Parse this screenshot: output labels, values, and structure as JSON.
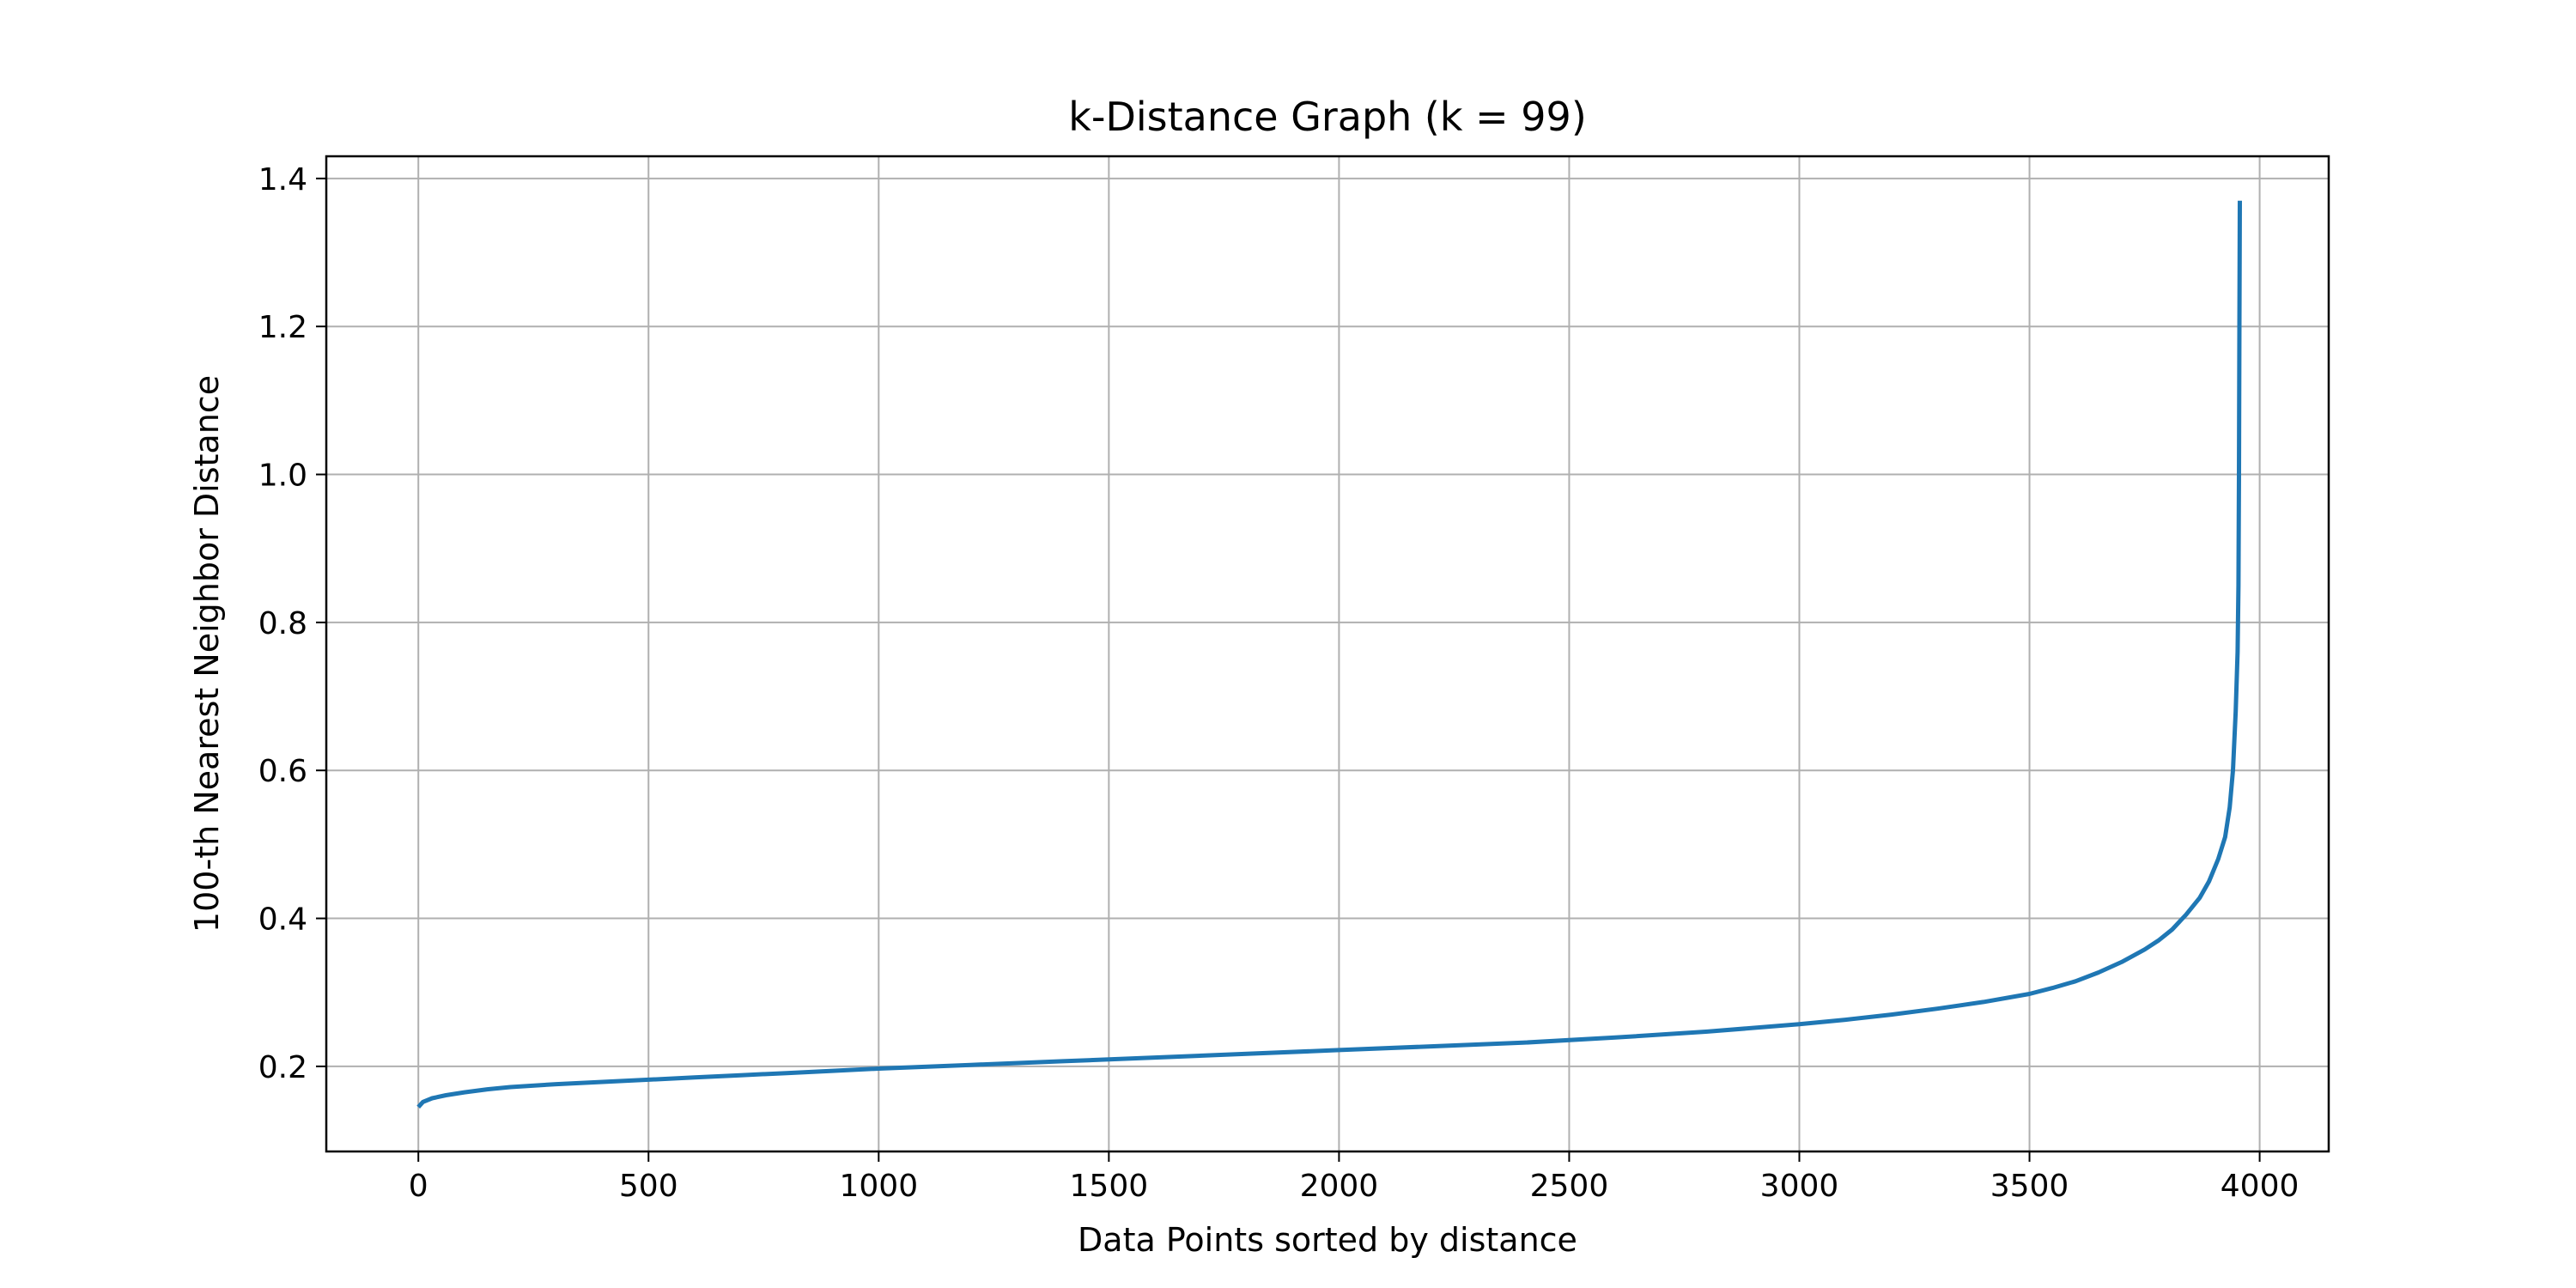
{
  "chart_data": {
    "type": "line",
    "title": "k-Distance Graph (k = 99)",
    "xlabel": "Data Points sorted by distance",
    "ylabel": "100-th Nearest Neighbor Distance",
    "xlim": [
      -200,
      4150
    ],
    "ylim": [
      0.085,
      1.43
    ],
    "xticks": [
      0,
      500,
      1000,
      1500,
      2000,
      2500,
      3000,
      3500,
      4000
    ],
    "xtick_labels": [
      "0",
      "500",
      "1000",
      "1500",
      "2000",
      "2500",
      "3000",
      "3500",
      "4000"
    ],
    "yticks": [
      0.2,
      0.4,
      0.6,
      0.8,
      1.0,
      1.2,
      1.4
    ],
    "ytick_labels": [
      "0.2",
      "0.4",
      "0.6",
      "0.8",
      "1.0",
      "1.2",
      "1.4"
    ],
    "grid": true,
    "line_color": "#1f77b4",
    "series": [
      {
        "x": [
          0,
          10,
          30,
          60,
          100,
          150,
          200,
          300,
          400,
          500,
          600,
          700,
          800,
          900,
          1000,
          1200,
          1400,
          1600,
          1800,
          2000,
          2200,
          2400,
          2600,
          2800,
          3000,
          3100,
          3200,
          3300,
          3400,
          3500,
          3550,
          3600,
          3650,
          3700,
          3750,
          3780,
          3810,
          3840,
          3870,
          3890,
          3910,
          3925,
          3935,
          3942,
          3948,
          3952,
          3954,
          3955,
          3956,
          3957
        ],
        "y": [
          0.145,
          0.152,
          0.157,
          0.161,
          0.165,
          0.169,
          0.172,
          0.176,
          0.179,
          0.182,
          0.185,
          0.188,
          0.191,
          0.194,
          0.197,
          0.202,
          0.207,
          0.212,
          0.217,
          0.222,
          0.227,
          0.232,
          0.239,
          0.247,
          0.257,
          0.263,
          0.27,
          0.278,
          0.287,
          0.298,
          0.306,
          0.315,
          0.327,
          0.341,
          0.358,
          0.37,
          0.385,
          0.405,
          0.428,
          0.45,
          0.48,
          0.51,
          0.55,
          0.6,
          0.68,
          0.76,
          0.85,
          1.0,
          1.2,
          1.37
        ]
      }
    ]
  }
}
